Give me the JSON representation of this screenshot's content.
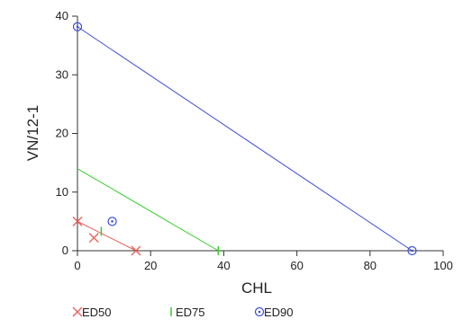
{
  "chart_data": {
    "type": "scatter",
    "title": "",
    "xlabel": "CHL",
    "ylabel": "VN/12-1",
    "xlim": [
      0,
      100
    ],
    "ylim": [
      0,
      40
    ],
    "x_ticks": [
      0,
      20,
      40,
      60,
      80,
      100
    ],
    "y_ticks": [
      0,
      10,
      20,
      30,
      40
    ],
    "x_tick_labels": [
      "0",
      "20",
      "40",
      "60",
      "80",
      "100"
    ],
    "y_tick_labels": [
      "0",
      "10",
      "20",
      "30",
      "40"
    ],
    "grid": false,
    "legend_position": "bottom",
    "series": [
      {
        "name": "ED50",
        "color": "#e8605a",
        "marker": "x",
        "line": {
          "x": [
            0,
            16
          ],
          "y": [
            5,
            0
          ]
        },
        "points": [
          {
            "x": 0,
            "y": 5
          },
          {
            "x": 4.5,
            "y": 2.2
          },
          {
            "x": 16,
            "y": 0
          }
        ]
      },
      {
        "name": "ED75",
        "color": "#34d02a",
        "marker": "vline",
        "line": {
          "x": [
            0,
            38.5
          ],
          "y": [
            14,
            0
          ]
        },
        "points": [
          {
            "x": 6.5,
            "y": 3.3
          },
          {
            "x": 38.5,
            "y": 0
          }
        ]
      },
      {
        "name": "ED90",
        "color": "#3d4fd6",
        "marker": "circle-dot",
        "line": {
          "x": [
            0,
            91.5
          ],
          "y": [
            38.2,
            0
          ]
        },
        "points": [
          {
            "x": 0,
            "y": 38.2
          },
          {
            "x": 9.5,
            "y": 5
          },
          {
            "x": 91.5,
            "y": 0
          }
        ]
      }
    ]
  }
}
